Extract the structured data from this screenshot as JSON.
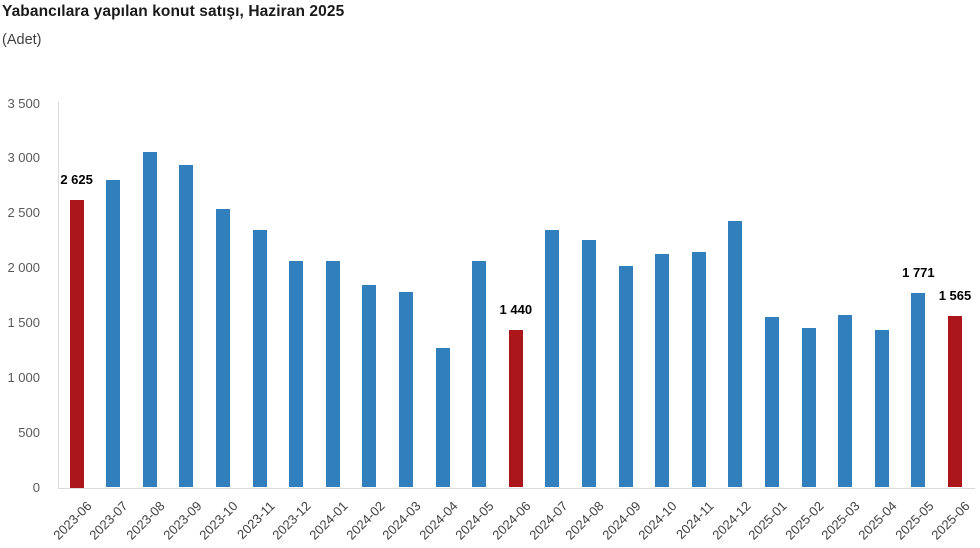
{
  "header": {
    "title": "Yabancılara yapılan konut satışı, Haziran 2025",
    "subtitle": "(Adet)"
  },
  "colors": {
    "bar_default": "#3180BD",
    "bar_highlight": "#AA161A",
    "axis_line": "#D9D9D9",
    "y_tick_text": "#595959",
    "x_label_text": "#404040",
    "data_label_text": "#000000",
    "title_text": "#1A1A1A"
  },
  "chart_data": {
    "type": "bar",
    "title": "Yabancılara yapılan konut satışı, Haziran 2025",
    "ylabel": "(Adet)",
    "xlabel": "",
    "ylim": [
      0,
      3500
    ],
    "grid": false,
    "legend": false,
    "categories": [
      "2023-06",
      "2023-07",
      "2023-08",
      "2023-09",
      "2023-10",
      "2023-11",
      "2023-12",
      "2024-01",
      "2024-02",
      "2024-03",
      "2024-04",
      "2024-05",
      "2024-06",
      "2024-07",
      "2024-08",
      "2024-09",
      "2024-10",
      "2024-11",
      "2024-12",
      "2025-01",
      "2025-02",
      "2025-03",
      "2025-04",
      "2025-05",
      "2025-06"
    ],
    "values": [
      2625,
      2805,
      3055,
      2935,
      2535,
      2345,
      2065,
      2060,
      1850,
      1780,
      1270,
      2065,
      1440,
      2350,
      2260,
      2020,
      2125,
      2145,
      2425,
      1550,
      1455,
      1575,
      1440,
      1771,
      1565
    ],
    "highlighted_indices": [
      0,
      12,
      24
    ],
    "point_labels": {
      "0": "2 625",
      "12": "1 440",
      "23": "1 771",
      "24": "1 565"
    },
    "y_ticks": [
      {
        "value": 3500,
        "label": "3 500"
      },
      {
        "value": 3000,
        "label": "3 000"
      },
      {
        "value": 2500,
        "label": "2 500"
      },
      {
        "value": 2000,
        "label": "2 000"
      },
      {
        "value": 1500,
        "label": "1 500"
      },
      {
        "value": 1000,
        "label": "1 000"
      },
      {
        "value": 500,
        "label": "500"
      },
      {
        "value": 0,
        "label": "0"
      }
    ]
  }
}
